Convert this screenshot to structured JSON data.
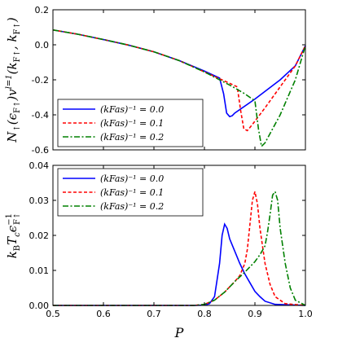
{
  "chart_data": [
    {
      "type": "line",
      "ylabel": "N↑(ϵF↑)vˡ⁼¹(kF↑, kF↑)",
      "xlabel": "",
      "xlim": [
        0.5,
        1.0
      ],
      "ylim": [
        -0.6,
        0.2
      ],
      "xticks": [
        "0.5",
        "0.6",
        "0.7",
        "0.8",
        "0.9",
        "1.0"
      ],
      "yticks": [
        "-0.6",
        "-0.4",
        "-0.2",
        "0.0",
        "0.2"
      ],
      "legend_position": "bottom-left",
      "series": [
        {
          "name": "(kFas)⁻¹ = 0.0",
          "color": "#0000ff",
          "dash": "solid",
          "x": [
            0.5,
            0.55,
            0.6,
            0.65,
            0.7,
            0.75,
            0.8,
            0.83,
            0.838,
            0.844,
            0.85,
            0.855,
            0.86,
            0.9,
            0.95,
            0.98,
            1.0
          ],
          "y": [
            0.085,
            0.06,
            0.03,
            -0.002,
            -0.04,
            -0.09,
            -0.15,
            -0.19,
            -0.28,
            -0.39,
            -0.41,
            -0.405,
            -0.39,
            -0.31,
            -0.2,
            -0.12,
            -0.005
          ]
        },
        {
          "name": "(kFas)⁻¹ = 0.1",
          "color": "#ff0000",
          "dash": "dashed",
          "x": [
            0.5,
            0.55,
            0.6,
            0.65,
            0.7,
            0.75,
            0.8,
            0.85,
            0.865,
            0.872,
            0.878,
            0.885,
            0.895,
            0.92,
            0.95,
            0.98,
            1.0
          ],
          "y": [
            0.085,
            0.06,
            0.03,
            -0.002,
            -0.04,
            -0.09,
            -0.155,
            -0.22,
            -0.24,
            -0.38,
            -0.48,
            -0.49,
            -0.455,
            -0.36,
            -0.24,
            -0.12,
            -0.005
          ]
        },
        {
          "name": "(kFas)⁻¹ = 0.2",
          "color": "#008000",
          "dash": "dashdot",
          "x": [
            0.5,
            0.55,
            0.6,
            0.65,
            0.7,
            0.75,
            0.8,
            0.85,
            0.88,
            0.9,
            0.907,
            0.913,
            0.92,
            0.95,
            0.98,
            1.0
          ],
          "y": [
            0.085,
            0.06,
            0.03,
            -0.002,
            -0.04,
            -0.09,
            -0.155,
            -0.23,
            -0.28,
            -0.32,
            -0.48,
            -0.58,
            -0.56,
            -0.4,
            -0.2,
            -0.005
          ]
        }
      ]
    },
    {
      "type": "line",
      "ylabel": "kBTcϵF↑⁻¹",
      "xlabel": "P",
      "xlim": [
        0.5,
        1.0
      ],
      "ylim": [
        0,
        0.04
      ],
      "xticks": [
        "0.5",
        "0.6",
        "0.7",
        "0.8",
        "0.9",
        "1.0"
      ],
      "yticks": [
        "0.00",
        "0.01",
        "0.02",
        "0.03",
        "0.04"
      ],
      "legend_position": "top-left",
      "series": [
        {
          "name": "(kFas)⁻¹ = 0.0",
          "color": "#0000ff",
          "dash": "solid",
          "x": [
            0.5,
            0.78,
            0.8,
            0.81,
            0.82,
            0.83,
            0.835,
            0.84,
            0.845,
            0.85,
            0.86,
            0.87,
            0.88,
            0.89,
            0.9,
            0.91,
            0.92,
            0.94,
            1.0
          ],
          "y": [
            0,
            0,
            0.0001,
            0.0005,
            0.0025,
            0.012,
            0.02,
            0.0232,
            0.022,
            0.019,
            0.0155,
            0.012,
            0.009,
            0.0065,
            0.004,
            0.0025,
            0.0012,
            0.0003,
            0
          ]
        },
        {
          "name": "(kFas)⁻¹ = 0.1",
          "color": "#ff0000",
          "dash": "dashed",
          "x": [
            0.5,
            0.78,
            0.8,
            0.82,
            0.84,
            0.86,
            0.87,
            0.88,
            0.885,
            0.89,
            0.895,
            0.9,
            0.905,
            0.91,
            0.92,
            0.93,
            0.94,
            0.96,
            1.0
          ],
          "y": [
            0,
            0,
            0.0003,
            0.0015,
            0.0038,
            0.0068,
            0.0085,
            0.012,
            0.016,
            0.023,
            0.03,
            0.0325,
            0.029,
            0.022,
            0.012,
            0.006,
            0.0025,
            0.0005,
            0
          ]
        },
        {
          "name": "(kFas)⁻¹ = 0.2",
          "color": "#008000",
          "dash": "dashdot",
          "x": [
            0.5,
            0.78,
            0.8,
            0.82,
            0.84,
            0.86,
            0.88,
            0.9,
            0.91,
            0.92,
            0.925,
            0.93,
            0.935,
            0.94,
            0.945,
            0.95,
            0.96,
            0.97,
            0.98,
            1.0
          ],
          "y": [
            0,
            0,
            0.0003,
            0.0015,
            0.0038,
            0.0068,
            0.0095,
            0.0125,
            0.0145,
            0.017,
            0.021,
            0.026,
            0.0315,
            0.0325,
            0.03,
            0.022,
            0.012,
            0.005,
            0.0015,
            0
          ]
        }
      ]
    }
  ]
}
